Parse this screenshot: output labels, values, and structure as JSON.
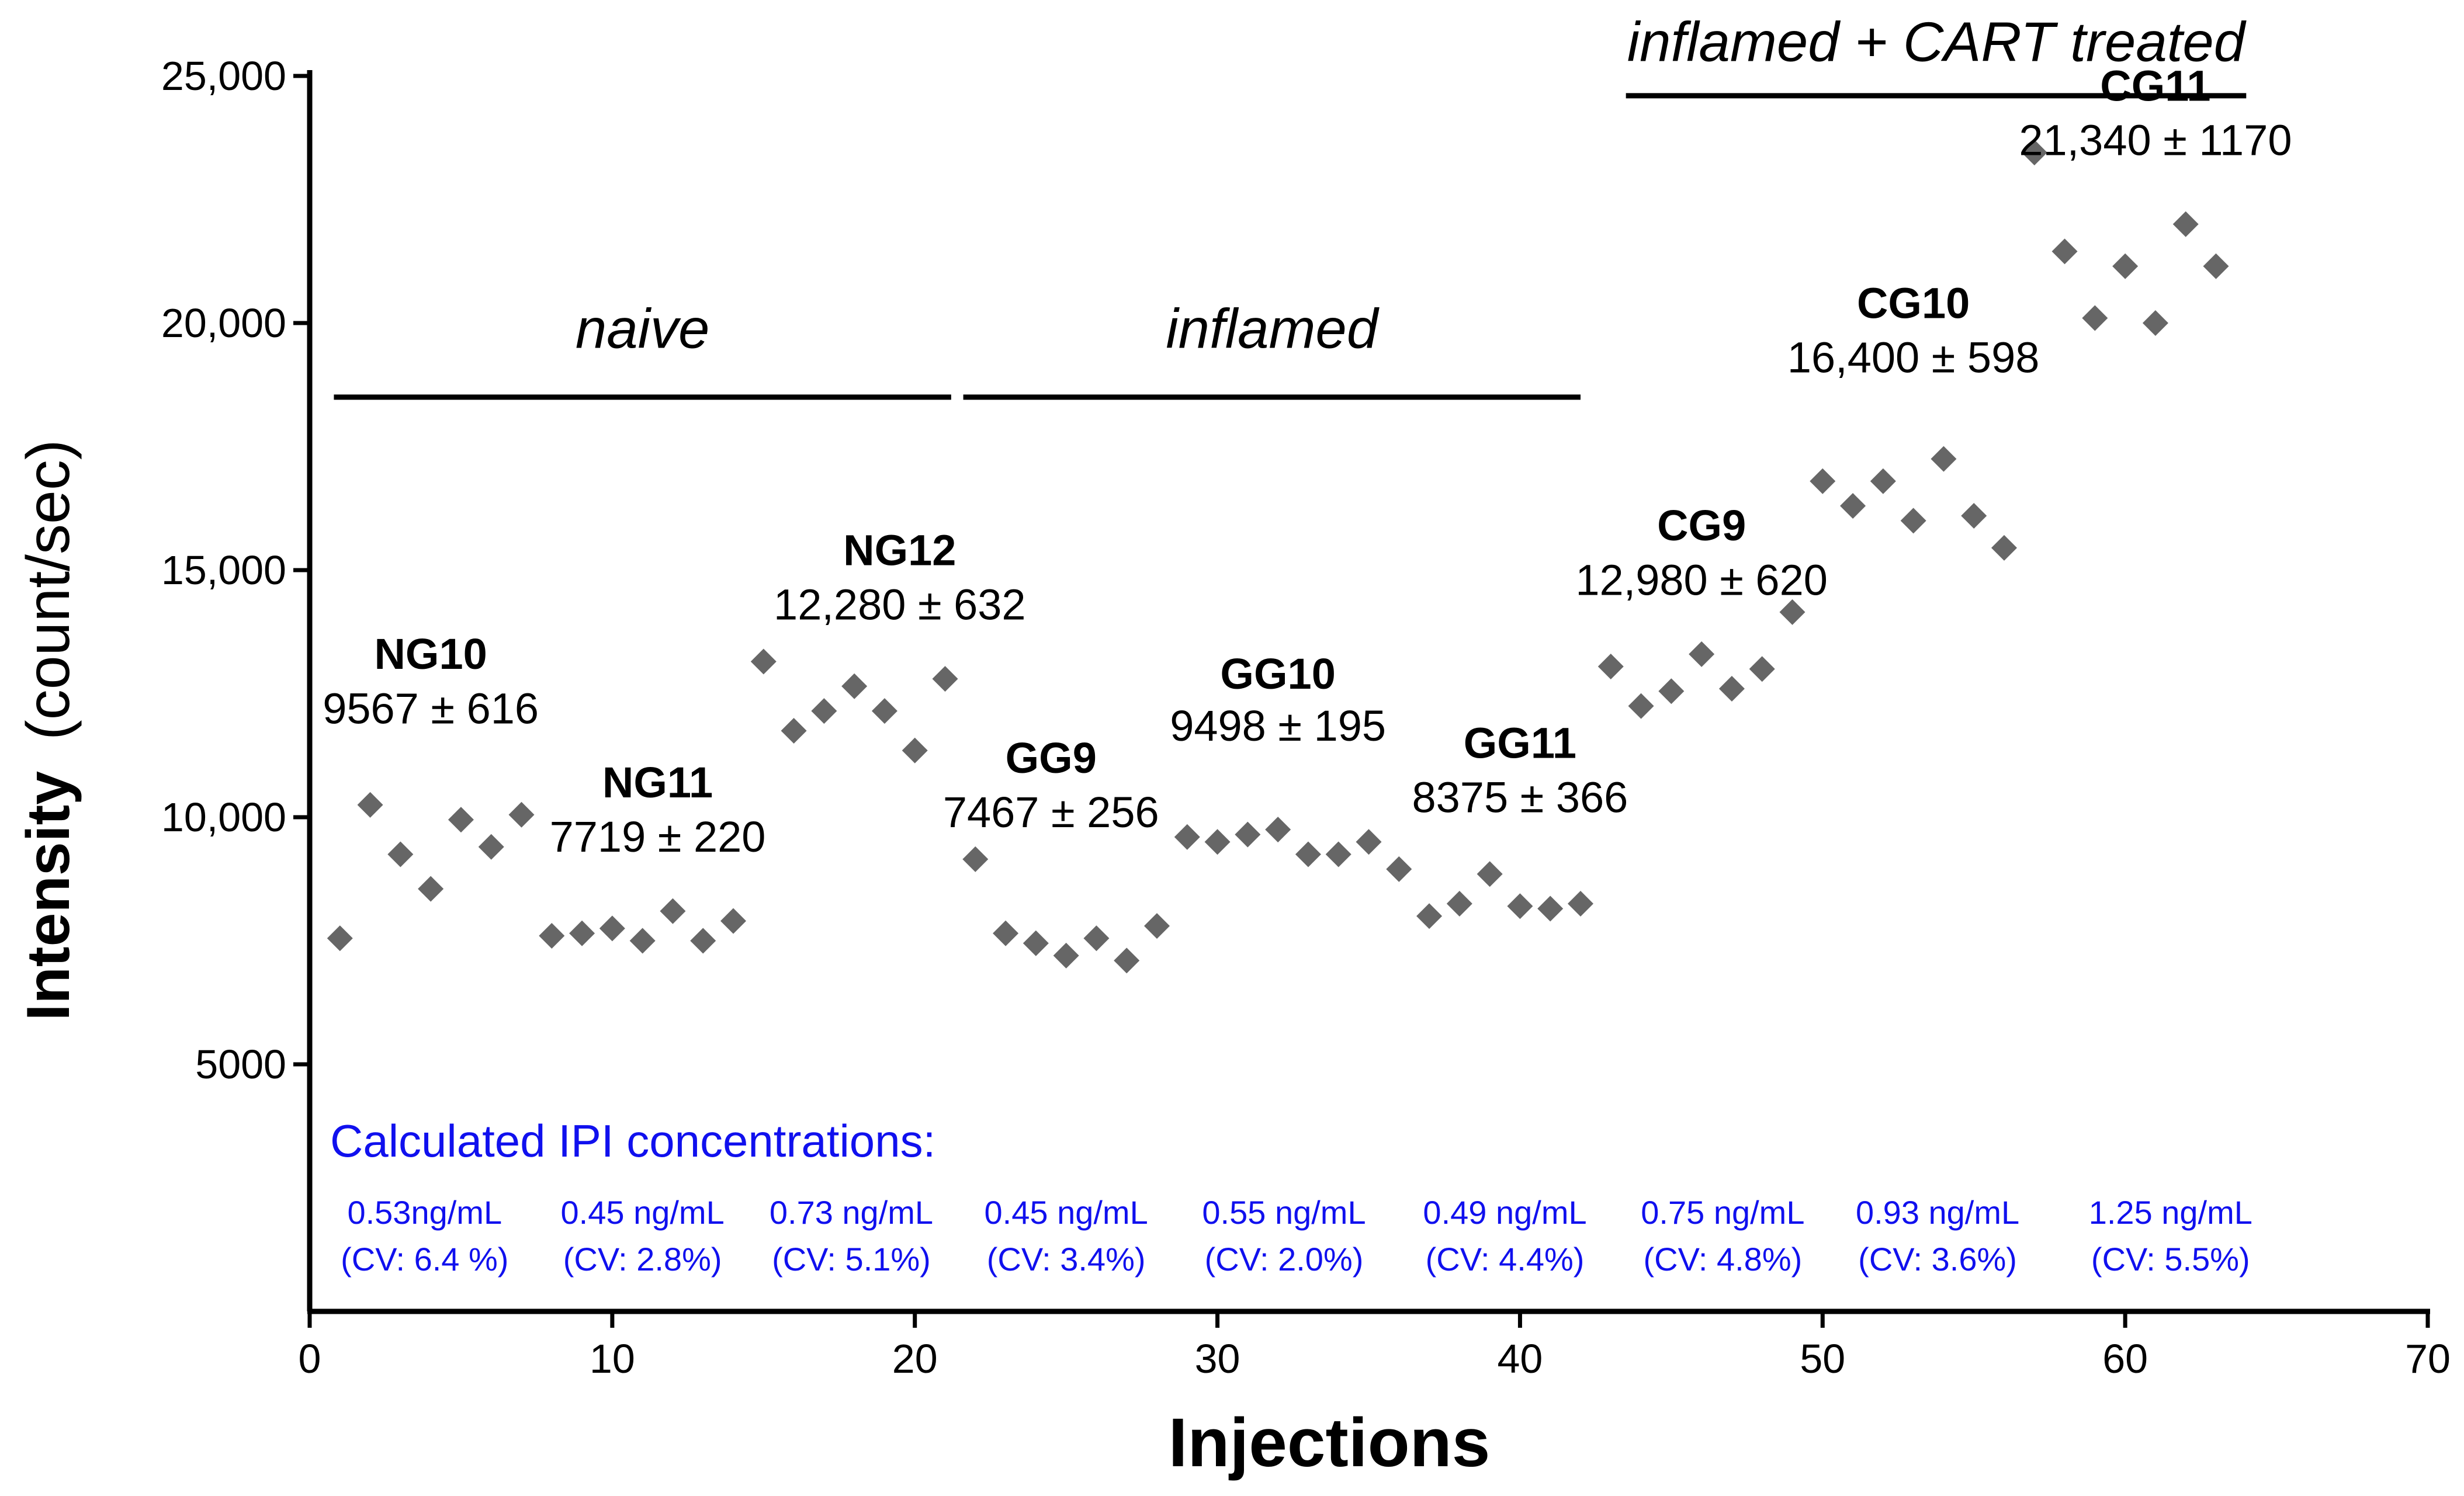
{
  "chart_data": {
    "type": "scatter",
    "title": "",
    "xlabel": "Injections",
    "ylabel_bold": "Intensity",
    "ylabel_rest": "(count/sec)",
    "xlim": [
      0,
      70
    ],
    "ylim": [
      0,
      25000
    ],
    "xticks": [
      0,
      10,
      20,
      30,
      40,
      50,
      60,
      70
    ],
    "xtick_labels": [
      "0",
      "10",
      "20",
      "30",
      "40",
      "50",
      "60",
      "70"
    ],
    "yticks": [
      5000,
      10000,
      15000,
      20000,
      25000
    ],
    "ytick_labels": [
      "5000",
      "10,000",
      "15,000",
      "20,000",
      "25,000"
    ],
    "grid": false,
    "point_color": "#666666",
    "annotation_color": "#1010ee",
    "series": [
      {
        "name": "NG10",
        "x": [
          1,
          2,
          3,
          4,
          5,
          6,
          7
        ],
        "y": [
          7550,
          10250,
          9250,
          8550,
          9950,
          9400,
          10050
        ]
      },
      {
        "name": "NG11",
        "x": [
          8,
          9,
          10,
          11,
          12,
          13,
          14
        ],
        "y": [
          7600,
          7650,
          7750,
          7500,
          8100,
          7500,
          7900
        ]
      },
      {
        "name": "NG12",
        "x": [
          15,
          16,
          17,
          18,
          19,
          20,
          21
        ],
        "y": [
          13150,
          11750,
          12150,
          12650,
          12150,
          11350,
          12800
        ]
      },
      {
        "name": "GG9",
        "x": [
          22,
          23,
          24,
          25,
          26,
          27,
          28
        ],
        "y": [
          9150,
          7650,
          7450,
          7200,
          7550,
          7100,
          7800
        ]
      },
      {
        "name": "GG10",
        "x": [
          29,
          30,
          31,
          32,
          33,
          34,
          35
        ],
        "y": [
          9600,
          9500,
          9650,
          9750,
          9250,
          9250,
          9500
        ]
      },
      {
        "name": "GG11",
        "x": [
          36,
          37,
          38,
          39,
          40,
          41,
          42
        ],
        "y": [
          8950,
          8000,
          8250,
          8850,
          8200,
          8150,
          8250
        ]
      },
      {
        "name": "CG9",
        "x": [
          43,
          44,
          45,
          46,
          47,
          48,
          49
        ],
        "y": [
          13050,
          12250,
          12550,
          13300,
          12600,
          13000,
          14150
        ]
      },
      {
        "name": "CG10",
        "x": [
          50,
          51,
          52,
          53,
          54,
          55,
          56
        ],
        "y": [
          16800,
          16300,
          16800,
          16000,
          17250,
          16100,
          15450
        ]
      },
      {
        "name": "CG11",
        "x": [
          57,
          58,
          59,
          60,
          61,
          62,
          63
        ],
        "y": [
          23450,
          21450,
          20100,
          21150,
          20000,
          22000,
          21150
        ]
      }
    ],
    "groups": [
      {
        "name": "NG10",
        "stat": "9567 ± 616",
        "cx": 4,
        "y_name": 13000,
        "y_stat": 11900
      },
      {
        "name": "NG11",
        "stat": "7719 ± 220",
        "cx": 11.5,
        "y_name": 10400,
        "y_stat": 9300
      },
      {
        "name": "NG12",
        "stat": "12,280 ± 632",
        "cx": 19.5,
        "y_name": 15100,
        "y_stat": 14000
      },
      {
        "name": "GG9",
        "stat": "7467 ± 256",
        "cx": 24.5,
        "y_name": 10900,
        "y_stat": 9800
      },
      {
        "name": "GG10",
        "stat": "9498 ± 195",
        "cx": 32,
        "y_name": 12600,
        "y_stat": 11550
      },
      {
        "name": "GG11",
        "stat": "8375 ± 366",
        "cx": 40,
        "y_name": 11200,
        "y_stat": 10100
      },
      {
        "name": "CG9",
        "stat": "12,980 ± 620",
        "cx": 46,
        "y_name": 15600,
        "y_stat": 14500
      },
      {
        "name": "CG10",
        "stat": "16,400 ± 598",
        "cx": 53,
        "y_name": 20100,
        "y_stat": 19000
      },
      {
        "name": "CG11",
        "stat": "21,340 ± 1170",
        "cx": 61,
        "y_name": 24500,
        "y_stat": 23400
      }
    ],
    "conditions": [
      {
        "label": "naive",
        "x_from": 0.8,
        "x_to": 21.2,
        "y_bar": 18500,
        "y_label": 19500
      },
      {
        "label": "inflamed",
        "x_from": 21.6,
        "x_to": 42,
        "y_bar": 18500,
        "y_label": 19500
      },
      {
        "label": "inflamed + CART treated",
        "x_from": 43.5,
        "x_to": 64,
        "y_bar": 24600,
        "y_label": 25300
      }
    ],
    "concentrations": {
      "title": "Calculated IPI concentrations:",
      "items": [
        {
          "value": "0.53ng/mL",
          "cv": "(CV: 6.4 %)",
          "cx": 3.8
        },
        {
          "value": "0.45 ng/mL",
          "cv": "(CV: 2.8%)",
          "cx": 11
        },
        {
          "value": "0.73 ng/mL",
          "cv": "(CV: 5.1%)",
          "cx": 17.9
        },
        {
          "value": "0.45 ng/mL",
          "cv": "(CV: 3.4%)",
          "cx": 25
        },
        {
          "value": "0.55 ng/mL",
          "cv": "(CV: 2.0%)",
          "cx": 32.2
        },
        {
          "value": "0.49 ng/mL",
          "cv": "(CV: 4.4%)",
          "cx": 39.5
        },
        {
          "value": "0.75 ng/mL",
          "cv": "(CV: 4.8%)",
          "cx": 46.7
        },
        {
          "value": "0.93 ng/mL",
          "cv": "(CV: 3.6%)",
          "cx": 53.8
        },
        {
          "value": "1.25 ng/mL",
          "cv": "(CV: 5.5%)",
          "cx": 61.5
        }
      ]
    }
  }
}
